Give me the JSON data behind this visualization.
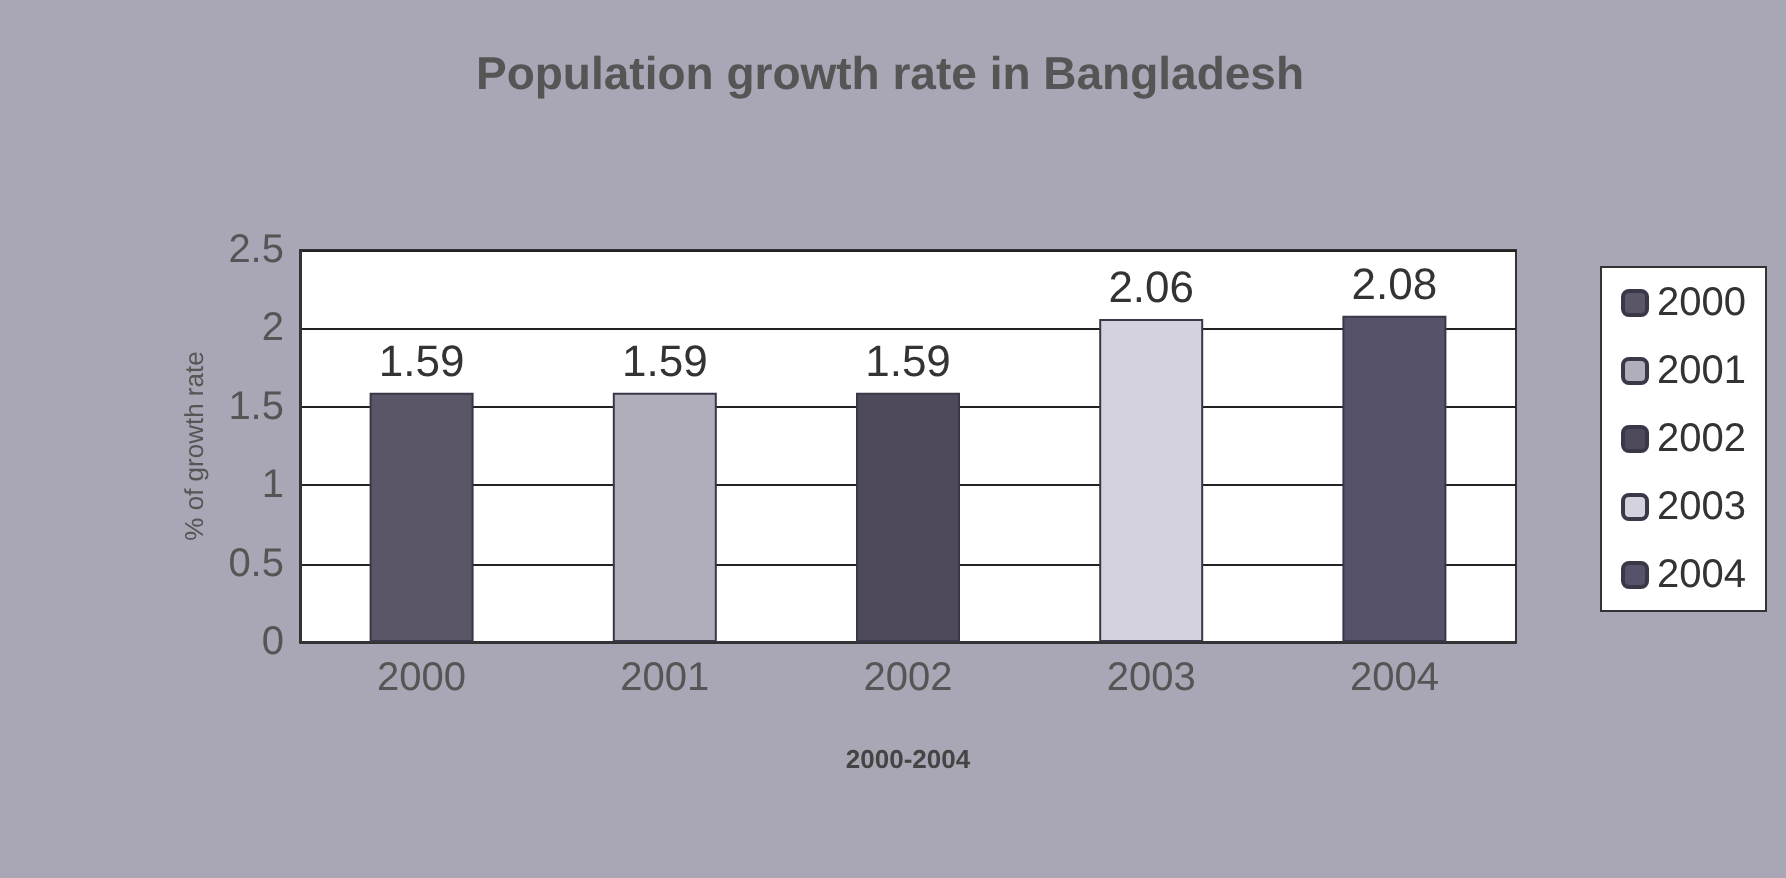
{
  "chart_data": {
    "type": "bar",
    "title": "Population growth rate in Bangladesh",
    "xlabel": "2000-2004",
    "ylabel": "% of growth rate",
    "categories": [
      "2000",
      "2001",
      "2002",
      "2003",
      "2004"
    ],
    "series": [
      {
        "name": "2000",
        "color": "#5a5668",
        "values": [
          1.59,
          null,
          null,
          null,
          null
        ]
      },
      {
        "name": "2001",
        "color": "#b0aebb",
        "values": [
          null,
          1.59,
          null,
          null,
          null
        ]
      },
      {
        "name": "2002",
        "color": "#4e4a5c",
        "values": [
          null,
          null,
          1.59,
          null,
          null
        ]
      },
      {
        "name": "2003",
        "color": "#d4d2dc",
        "values": [
          null,
          null,
          null,
          2.06,
          null
        ]
      },
      {
        "name": "2004",
        "color": "#56526a",
        "values": [
          null,
          null,
          null,
          null,
          2.08
        ]
      }
    ],
    "ylim": [
      0,
      2.5
    ],
    "yticks": [
      0,
      0.5,
      1,
      1.5,
      2,
      2.5
    ],
    "grid": "y",
    "legend": "right",
    "data_labels": true
  }
}
